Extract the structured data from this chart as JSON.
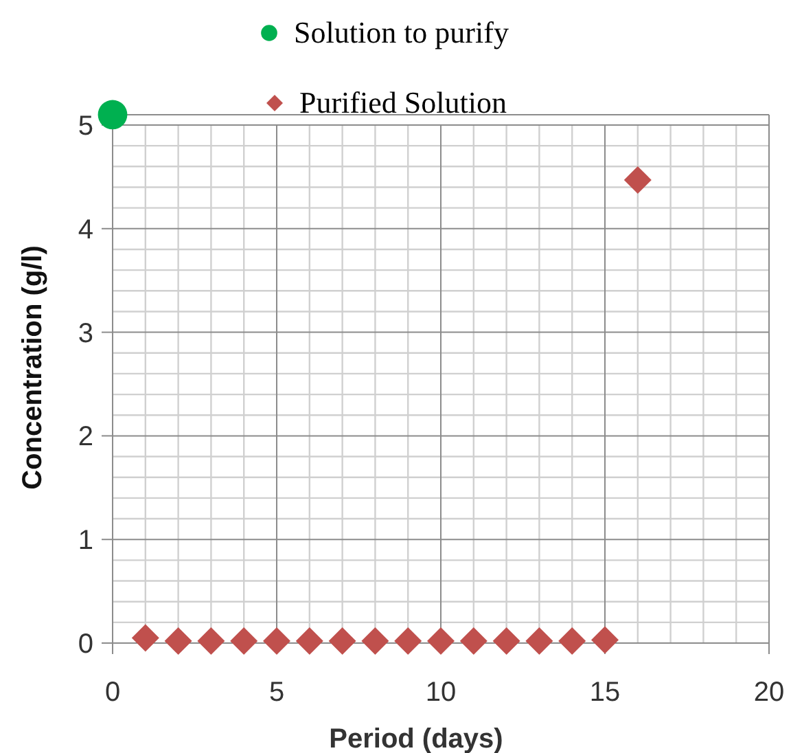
{
  "chart_data": {
    "type": "scatter",
    "xlabel": "Period (days)",
    "ylabel": "Concentration  (g/l)",
    "xlim": [
      0,
      20
    ],
    "xticks": [
      0,
      5,
      10,
      15,
      20
    ],
    "ylim": [
      0,
      5.1
    ],
    "yticks": [
      0,
      1,
      2,
      3,
      4,
      5
    ],
    "grid": true,
    "legend": "top",
    "series": [
      {
        "name": "Solution to purify",
        "color": "#00b050",
        "marker": "circle",
        "x": [
          0
        ],
        "values": [
          5.1
        ]
      },
      {
        "name": "Purified Solution",
        "color": "#c0504d",
        "marker": "diamond",
        "x": [
          1,
          2,
          3,
          4,
          5,
          6,
          7,
          8,
          9,
          10,
          11,
          12,
          13,
          14,
          15,
          16
        ],
        "values": [
          0.05,
          0.02,
          0.02,
          0.02,
          0.02,
          0.02,
          0.02,
          0.02,
          0.02,
          0.02,
          0.02,
          0.02,
          0.02,
          0.02,
          0.03,
          4.47
        ]
      }
    ]
  }
}
